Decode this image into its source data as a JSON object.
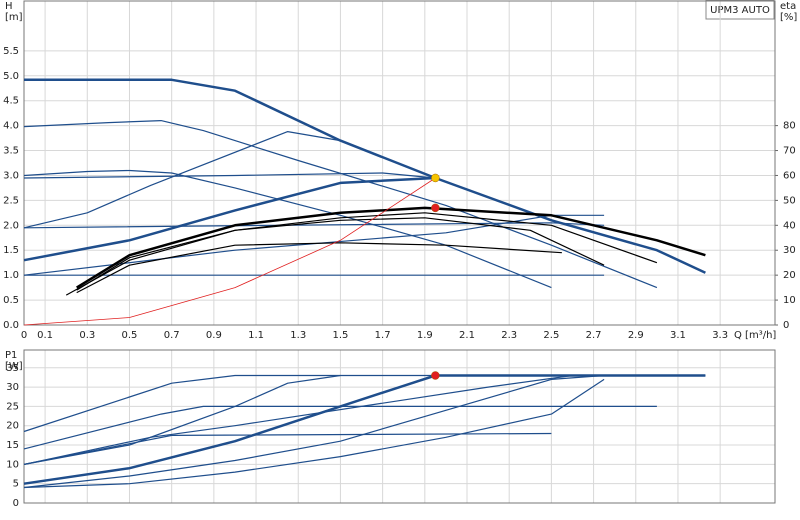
{
  "label": "UPM3 AUTO",
  "chart_data": [
    {
      "type": "line",
      "y_label": "H",
      "y_unit": "[m]",
      "y2_label": "eta",
      "y2_unit": "[%]",
      "x_label": "Q [m³/h]",
      "xlim": [
        0,
        3.56
      ],
      "ylim": [
        0,
        6.5
      ],
      "y2lim": [
        0,
        130
      ],
      "grid": true,
      "xticks": [
        0,
        0.1,
        0.3,
        0.5,
        0.7,
        0.9,
        1.1,
        1.3,
        1.5,
        1.7,
        1.9,
        2.1,
        2.3,
        2.5,
        2.7,
        2.9,
        3.1,
        3.3
      ],
      "yticks": [
        {
          "value": 0,
          "label": "0.0"
        },
        0.5,
        {
          "value": 1,
          "label": "1.0"
        },
        1.5,
        {
          "value": 2,
          "label": "2.0"
        },
        2.5,
        {
          "value": 3,
          "label": "3.0"
        },
        3.5,
        {
          "value": 4,
          "label": "4.0"
        },
        4.5,
        {
          "value": 5,
          "label": "5.0"
        },
        5.5
      ],
      "y2ticks": [
        0,
        10,
        20,
        30,
        40,
        50,
        60,
        70,
        80
      ],
      "series": [
        {
          "color": "#1f4e8c",
          "width": 2.5,
          "x": [
            0,
            0.7,
            1.0,
            1.5,
            1.95,
            2.5,
            3.0,
            3.23
          ],
          "values": [
            4.92,
            4.92,
            4.7,
            3.7,
            2.95,
            2.1,
            1.5,
            1.05
          ]
        },
        {
          "color": "#1f4e8c",
          "width": 1.2,
          "x": [
            0,
            0.4,
            0.65,
            0.85,
            1.3,
            2.0,
            2.5,
            3.0
          ],
          "values": [
            3.98,
            4.06,
            4.1,
            3.9,
            3.3,
            2.4,
            1.6,
            0.75
          ]
        },
        {
          "color": "#1f4e8c",
          "width": 1.2,
          "x": [
            0,
            0.3,
            0.5,
            0.7,
            1.0,
            1.5,
            2.0,
            2.5
          ],
          "values": [
            3.0,
            3.08,
            3.1,
            3.05,
            2.75,
            2.2,
            1.6,
            0.75
          ]
        },
        {
          "color": "#1f4e8c",
          "width": 1.2,
          "x": [
            0,
            1.0,
            1.7,
            1.95
          ],
          "values": [
            2.95,
            3.0,
            3.05,
            2.95
          ]
        },
        {
          "color": "#1f4e8c",
          "width": 1.2,
          "x": [
            0,
            1.2,
            2.5,
            2.75
          ],
          "values": [
            1.95,
            2.0,
            2.05,
            2.0
          ]
        },
        {
          "color": "#1f4e8c",
          "width": 1.2,
          "x": [
            0,
            2.75
          ],
          "values": [
            1.0,
            1.0
          ]
        },
        {
          "color": "#1f4e8c",
          "width": 2.5,
          "x": [
            0,
            0.5,
            1.0,
            1.5,
            1.95
          ],
          "values": [
            1.3,
            1.7,
            2.3,
            2.85,
            2.95
          ]
        },
        {
          "color": "#1f4e8c",
          "width": 1.2,
          "x": [
            0,
            0.3,
            0.6,
            1.25,
            1.5
          ],
          "values": [
            1.95,
            2.25,
            2.8,
            3.88,
            3.7
          ]
        },
        {
          "color": "#1f4e8c",
          "width": 1.2,
          "x": [
            0,
            1.0,
            2.0,
            2.5,
            2.75
          ],
          "values": [
            1.0,
            1.5,
            1.85,
            2.2,
            2.2
          ]
        },
        {
          "color": "#000000",
          "width": 2.5,
          "axis": "y2",
          "x": [
            0.25,
            0.5,
            1.0,
            1.5,
            1.9,
            2.5,
            3.0,
            3.23
          ],
          "values": [
            15,
            28,
            40,
            45,
            47,
            44,
            34,
            28
          ]
        },
        {
          "color": "#000000",
          "width": 1.2,
          "axis": "y2",
          "x": [
            0.2,
            0.5,
            1.0,
            1.5,
            1.9,
            2.5,
            3.0
          ],
          "values": [
            12,
            26,
            38,
            43,
            45,
            40,
            25
          ]
        },
        {
          "color": "#000000",
          "width": 1.2,
          "axis": "y2",
          "x": [
            0.25,
            0.5,
            1.0,
            1.5,
            1.9,
            2.4,
            2.75
          ],
          "values": [
            14,
            27,
            38,
            42,
            43,
            38,
            24
          ]
        },
        {
          "color": "#000000",
          "width": 1.2,
          "axis": "y2",
          "x": [
            0.25,
            0.5,
            1.0,
            1.5,
            2.0,
            2.55
          ],
          "values": [
            13,
            24,
            32,
            33,
            32,
            29
          ]
        },
        {
          "color": "#e02020",
          "width": 0.8,
          "x": [
            0,
            0.5,
            1.0,
            1.5,
            1.95
          ],
          "values": [
            0,
            0.15,
            0.75,
            1.7,
            2.95
          ]
        }
      ],
      "points": [
        {
          "x": 1.95,
          "y": 2.95,
          "color": "#f5c400"
        },
        {
          "x": 1.95,
          "y": 2.35,
          "color": "#e02020"
        }
      ]
    },
    {
      "type": "line",
      "y_label": "P1",
      "y_unit": "[W]",
      "xlim": [
        0,
        3.56
      ],
      "ylim": [
        0,
        39.6
      ],
      "grid": true,
      "yticks": [
        0,
        5,
        10,
        15,
        20,
        25,
        30,
        35
      ],
      "series": [
        {
          "color": "#1f4e8c",
          "width": 1.2,
          "x": [
            0,
            0.7,
            1.0,
            3.23
          ],
          "values": [
            18.5,
            31,
            33,
            33
          ]
        },
        {
          "color": "#1f4e8c",
          "width": 1.2,
          "x": [
            0,
            0.65,
            0.85,
            3.0
          ],
          "values": [
            14,
            23,
            25,
            25
          ]
        },
        {
          "color": "#1f4e8c",
          "width": 1.2,
          "x": [
            0,
            0.7,
            2.5
          ],
          "values": [
            10,
            17.5,
            18
          ]
        },
        {
          "color": "#1f4e8c",
          "width": 2.5,
          "x": [
            0,
            0.5,
            1.0,
            1.5,
            1.95,
            3.23
          ],
          "values": [
            5,
            9,
            16,
            25,
            33,
            33
          ]
        },
        {
          "color": "#1f4e8c",
          "width": 1.2,
          "x": [
            0,
            0.5,
            1.0,
            1.25,
            1.5
          ],
          "values": [
            10,
            15,
            25,
            31,
            33
          ]
        },
        {
          "color": "#1f4e8c",
          "width": 1.2,
          "x": [
            0,
            0.5,
            1.0,
            1.5,
            2.0,
            2.5,
            2.75
          ],
          "values": [
            4,
            7,
            11,
            16,
            24,
            32,
            33
          ]
        },
        {
          "color": "#1f4e8c",
          "width": 1.2,
          "x": [
            0,
            0.5,
            1.0,
            1.5,
            2.0,
            2.5,
            2.75
          ],
          "values": [
            4,
            5,
            8,
            12,
            17,
            23,
            32
          ]
        },
        {
          "color": "#1f4e8c",
          "width": 1.2,
          "x": [
            0,
            0.6,
            1.0,
            1.6,
            2.2,
            2.6
          ],
          "values": [
            10,
            17,
            20,
            25,
            30,
            33
          ]
        }
      ],
      "points": [
        {
          "x": 1.95,
          "y": 33,
          "color": "#e02020"
        }
      ]
    }
  ]
}
